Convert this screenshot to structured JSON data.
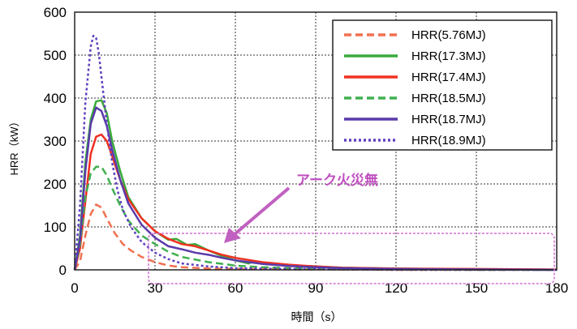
{
  "chart_data": {
    "type": "line",
    "title": "",
    "xlabel": "時間（s）",
    "ylabel": "HRR（kW）",
    "xlim": [
      0,
      180
    ],
    "ylim": [
      0,
      600
    ],
    "xticks": [
      "0",
      "30",
      "60",
      "90",
      "120",
      "150",
      "180"
    ],
    "yticks": [
      "0",
      "100",
      "200",
      "300",
      "400",
      "500",
      "600"
    ],
    "grid": true,
    "legend_position": "top-right",
    "annotation": "アーク火災無",
    "series": [
      {
        "name": "HRR(5.76MJ)",
        "color": "#f07050",
        "style": "dashed",
        "x": [
          0,
          2,
          4,
          6,
          8,
          10,
          12,
          15,
          18,
          21,
          25,
          30,
          35,
          40,
          50,
          60,
          80,
          100,
          120,
          150,
          180
        ],
        "y": [
          0,
          20,
          80,
          130,
          152,
          145,
          120,
          85,
          60,
          45,
          30,
          18,
          10,
          6,
          3,
          2,
          1,
          1,
          0,
          0,
          0
        ]
      },
      {
        "name": "HRR(17.3MJ)",
        "color": "#3aaa3a",
        "style": "solid",
        "x": [
          0,
          2,
          4,
          6,
          8,
          10,
          12,
          14,
          17,
          20,
          25,
          30,
          35,
          38,
          42,
          45,
          50,
          55,
          60,
          65,
          67,
          70,
          80,
          90,
          100,
          120,
          150,
          180
        ],
        "y": [
          0,
          80,
          250,
          350,
          392,
          395,
          365,
          300,
          230,
          170,
          120,
          90,
          70,
          72,
          58,
          60,
          45,
          32,
          22,
          15,
          20,
          14,
          10,
          8,
          5,
          3,
          1,
          0
        ]
      },
      {
        "name": "HRR(17.4MJ)",
        "color": "#f03020",
        "style": "solid",
        "x": [
          0,
          2,
          4,
          6,
          8,
          10,
          12,
          14,
          17,
          20,
          25,
          30,
          35,
          40,
          45,
          50,
          55,
          60,
          70,
          80,
          90,
          100,
          120,
          150,
          180
        ],
        "y": [
          0,
          50,
          160,
          270,
          310,
          315,
          300,
          265,
          210,
          165,
          120,
          90,
          72,
          60,
          55,
          45,
          35,
          28,
          18,
          12,
          8,
          5,
          3,
          2,
          1
        ]
      },
      {
        "name": "HRR(18.5MJ)",
        "color": "#40b050",
        "style": "dashed",
        "x": [
          0,
          2,
          4,
          6,
          8,
          10,
          12,
          14,
          17,
          20,
          25,
          30,
          35,
          40,
          50,
          60,
          70,
          80,
          100,
          120,
          150,
          180
        ],
        "y": [
          0,
          60,
          170,
          225,
          240,
          240,
          220,
          190,
          150,
          115,
          80,
          60,
          42,
          30,
          18,
          10,
          6,
          4,
          2,
          1,
          0,
          0
        ]
      },
      {
        "name": "HRR(18.7MJ)",
        "color": "#5a3aaa",
        "style": "solid",
        "x": [
          0,
          2,
          4,
          6,
          8,
          10,
          12,
          14,
          17,
          20,
          25,
          30,
          35,
          40,
          45,
          50,
          55,
          60,
          70,
          80,
          90,
          100,
          120,
          150,
          180
        ],
        "y": [
          0,
          70,
          230,
          340,
          378,
          370,
          335,
          280,
          210,
          155,
          105,
          75,
          55,
          48,
          40,
          35,
          28,
          22,
          14,
          9,
          6,
          4,
          2,
          1,
          0
        ]
      },
      {
        "name": "HRR(18.9MJ)",
        "color": "#6040c0",
        "style": "dotted",
        "x": [
          0,
          2,
          4,
          6,
          7,
          8,
          9,
          10,
          12,
          14,
          16,
          18,
          21,
          25,
          30,
          35,
          40,
          50,
          60,
          80,
          100,
          120,
          150,
          180
        ],
        "y": [
          0,
          150,
          390,
          520,
          545,
          540,
          505,
          450,
          340,
          250,
          185,
          140,
          100,
          65,
          40,
          25,
          15,
          8,
          4,
          2,
          1,
          0,
          0,
          0
        ]
      }
    ]
  },
  "colors": {
    "grid": "#333333",
    "annotation_text": "#c050c0",
    "annotation_arrow": "#c060c0",
    "highlight_box": "#d070d0"
  }
}
